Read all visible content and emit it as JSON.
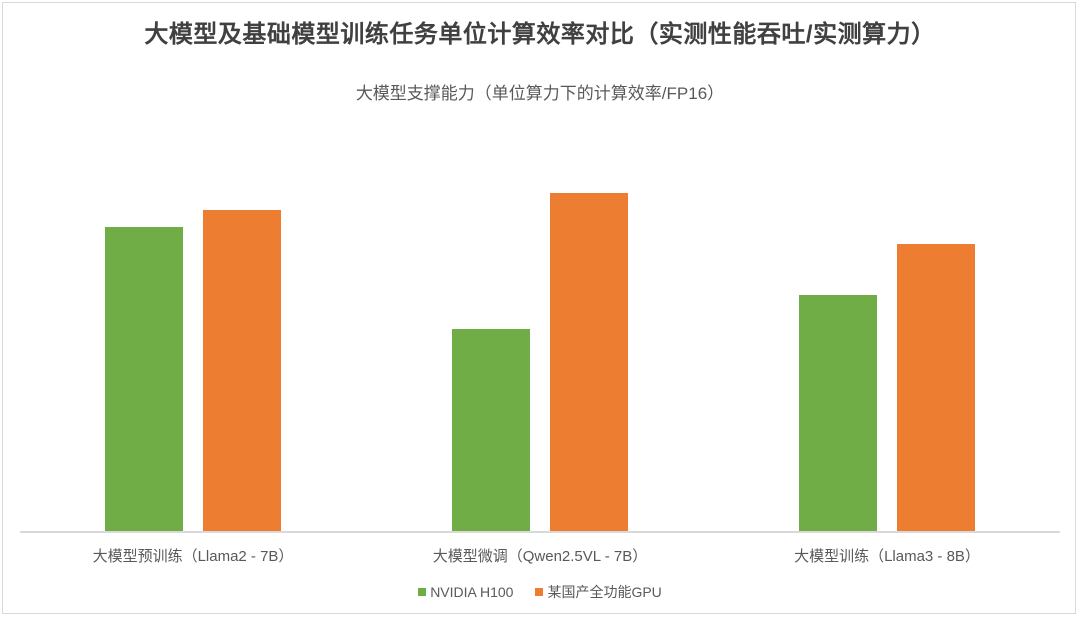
{
  "chart_data": {
    "type": "bar",
    "title": "大模型及基础模型训练任务单位计算效率对比（实测性能吞吐/实测算力）",
    "subtitle": "大模型支撑能力（单位算力下的计算效率/FP16）",
    "categories": [
      "大模型预训练（Llama2 - 7B）",
      "大模型微调（Qwen2.5VL - 7B）",
      "大模型训练（Llama3 - 8B）"
    ],
    "series": [
      {
        "name": "NVIDIA H100",
        "color": "#70AD47",
        "values": [
          305,
          203,
          237
        ]
      },
      {
        "name": "某国产全功能GPU",
        "color": "#ED7D31",
        "values": [
          322,
          339,
          288
        ]
      }
    ],
    "xlabel": "",
    "ylabel": "",
    "ylim": [
      0,
      402
    ],
    "value_note": "No y-axis or data labels shown; values are relative pixel heights",
    "grid": false,
    "legend_position": "bottom"
  },
  "legend": {
    "items": [
      {
        "label": "NVIDIA H100",
        "color": "#70AD47"
      },
      {
        "label": "某国产全功能GPU",
        "color": "#ED7D31"
      }
    ]
  }
}
